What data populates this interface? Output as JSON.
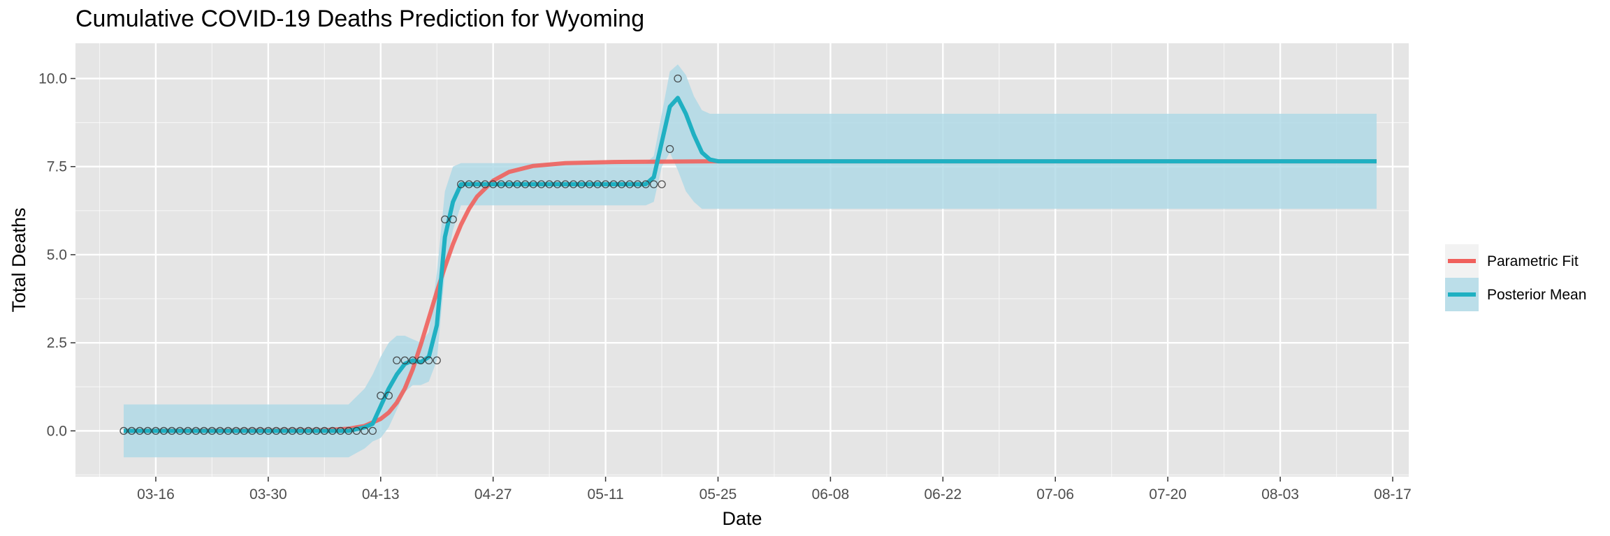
{
  "chart_data": {
    "type": "line",
    "title": "Cumulative COVID-19 Deaths Prediction for Wyoming",
    "xlabel": "Date",
    "ylabel": "Total Deaths",
    "x_ticks": [
      "03-16",
      "03-30",
      "04-13",
      "04-27",
      "05-11",
      "05-25",
      "06-08",
      "06-22",
      "07-06",
      "07-20",
      "08-03",
      "08-17"
    ],
    "y_ticks": [
      "0.0",
      "2.5",
      "5.0",
      "7.5",
      "10.0"
    ],
    "ylim": [
      -1.3,
      11.0
    ],
    "xlim": [
      "2020-03-06",
      "2020-08-19"
    ],
    "grid": true,
    "legend_position": "right",
    "colors": {
      "panel_background": "#e5e5e5",
      "grid_line": "#ffffff",
      "parametric_fit": "#f0605c",
      "posterior_mean": "#1fb0c2",
      "credible_band": "#add8e6",
      "observed_point_edge": "#333333"
    },
    "observed": {
      "x": [
        "2020-03-12",
        "2020-03-13",
        "2020-03-14",
        "2020-03-15",
        "2020-03-16",
        "2020-03-17",
        "2020-03-18",
        "2020-03-19",
        "2020-03-20",
        "2020-03-21",
        "2020-03-22",
        "2020-03-23",
        "2020-03-24",
        "2020-03-25",
        "2020-03-26",
        "2020-03-27",
        "2020-03-28",
        "2020-03-29",
        "2020-03-30",
        "2020-03-31",
        "2020-04-01",
        "2020-04-02",
        "2020-04-03",
        "2020-04-04",
        "2020-04-05",
        "2020-04-06",
        "2020-04-07",
        "2020-04-08",
        "2020-04-09",
        "2020-04-10",
        "2020-04-11",
        "2020-04-12",
        "2020-04-13",
        "2020-04-14",
        "2020-04-15",
        "2020-04-16",
        "2020-04-17",
        "2020-04-18",
        "2020-04-19",
        "2020-04-20",
        "2020-04-21",
        "2020-04-22",
        "2020-04-23",
        "2020-04-24",
        "2020-04-25",
        "2020-04-26",
        "2020-04-27",
        "2020-04-28",
        "2020-04-29",
        "2020-04-30",
        "2020-05-01",
        "2020-05-02",
        "2020-05-03",
        "2020-05-04",
        "2020-05-05",
        "2020-05-06",
        "2020-05-07",
        "2020-05-08",
        "2020-05-09",
        "2020-05-10",
        "2020-05-11",
        "2020-05-12",
        "2020-05-13",
        "2020-05-14",
        "2020-05-15",
        "2020-05-16",
        "2020-05-17",
        "2020-05-18",
        "2020-05-19",
        "2020-05-20"
      ],
      "y": [
        0,
        0,
        0,
        0,
        0,
        0,
        0,
        0,
        0,
        0,
        0,
        0,
        0,
        0,
        0,
        0,
        0,
        0,
        0,
        0,
        0,
        0,
        0,
        0,
        0,
        0,
        0,
        0,
        0,
        0,
        0,
        0,
        1,
        1,
        2,
        2,
        2,
        2,
        2,
        2,
        6,
        6,
        7,
        7,
        7,
        7,
        7,
        7,
        7,
        7,
        7,
        7,
        7,
        7,
        7,
        7,
        7,
        7,
        7,
        7,
        7,
        7,
        7,
        7,
        7,
        7,
        7,
        7,
        8,
        10
      ]
    },
    "series": [
      {
        "name": "Parametric Fit",
        "x": [
          "2020-03-12",
          "2020-04-06",
          "2020-04-09",
          "2020-04-11",
          "2020-04-13",
          "2020-04-14",
          "2020-04-15",
          "2020-04-16",
          "2020-04-17",
          "2020-04-18",
          "2020-04-19",
          "2020-04-20",
          "2020-04-21",
          "2020-04-22",
          "2020-04-23",
          "2020-04-24",
          "2020-04-25",
          "2020-04-27",
          "2020-04-29",
          "2020-05-02",
          "2020-05-06",
          "2020-05-12",
          "2020-05-25",
          "2020-08-15"
        ],
        "y": [
          0,
          0.02,
          0.06,
          0.14,
          0.34,
          0.52,
          0.8,
          1.2,
          1.75,
          2.45,
          3.2,
          3.95,
          4.65,
          5.3,
          5.85,
          6.3,
          6.65,
          7.1,
          7.35,
          7.52,
          7.6,
          7.63,
          7.65,
          7.65
        ]
      },
      {
        "name": "Posterior Mean",
        "x": [
          "2020-03-12",
          "2020-04-09",
          "2020-04-11",
          "2020-04-12",
          "2020-04-13",
          "2020-04-14",
          "2020-04-15",
          "2020-04-16",
          "2020-04-17",
          "2020-04-18",
          "2020-04-19",
          "2020-04-20",
          "2020-04-21",
          "2020-04-22",
          "2020-04-23",
          "2020-04-24",
          "2020-04-25",
          "2020-04-27",
          "2020-05-16",
          "2020-05-17",
          "2020-05-18",
          "2020-05-19",
          "2020-05-20",
          "2020-05-21",
          "2020-05-22",
          "2020-05-23",
          "2020-05-24",
          "2020-05-25",
          "2020-08-15"
        ],
        "y": [
          0,
          0,
          0.1,
          0.2,
          0.7,
          1.2,
          1.6,
          1.9,
          2.0,
          1.95,
          2.1,
          3.0,
          5.5,
          6.5,
          7.0,
          7.0,
          7.0,
          7.0,
          7.0,
          7.2,
          8.2,
          9.2,
          9.45,
          9.0,
          8.4,
          7.9,
          7.7,
          7.65,
          7.65
        ],
        "band_upper": [
          0.75,
          0.75,
          1.2,
          1.6,
          2.1,
          2.5,
          2.7,
          2.7,
          2.6,
          2.5,
          2.8,
          4.5,
          6.8,
          7.5,
          7.6,
          7.6,
          7.6,
          7.6,
          7.6,
          7.8,
          9.0,
          10.2,
          10.4,
          10.1,
          9.5,
          9.1,
          9.0,
          9.0,
          9.0
        ],
        "band_lower": [
          -0.75,
          -0.75,
          -0.5,
          -0.3,
          -0.2,
          0.1,
          0.6,
          1.1,
          1.3,
          1.3,
          1.4,
          2.0,
          4.5,
          5.7,
          6.4,
          6.4,
          6.4,
          6.4,
          6.4,
          6.5,
          7.5,
          7.9,
          7.4,
          6.8,
          6.5,
          6.3,
          6.3,
          6.3,
          6.3
        ]
      }
    ],
    "legend": [
      "Parametric Fit",
      "Posterior Mean"
    ]
  }
}
